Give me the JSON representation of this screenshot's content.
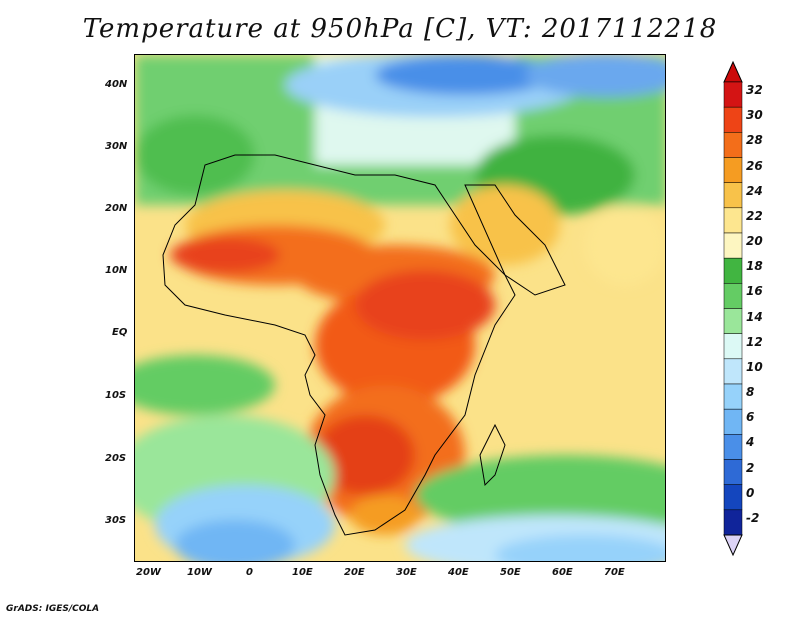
{
  "title": "Temperature at 950hPa [C], VT: 2017112218",
  "credit": "GrADS: IGES/COLA",
  "map": {
    "region": "Africa, Arabian Peninsula, Indian Ocean",
    "projection": "lat-lon",
    "lon_range": [
      -22,
      80
    ],
    "lat_range": [
      -37,
      46
    ],
    "lon_ticks": [
      "20W",
      "10W",
      "0",
      "10E",
      "20E",
      "30E",
      "40E",
      "50E",
      "60E",
      "70E"
    ],
    "lat_ticks": [
      "40N",
      "30N",
      "20N",
      "10N",
      "EQ",
      "10S",
      "20S",
      "30S"
    ]
  },
  "colorbar": {
    "labels": [
      "32",
      "30",
      "28",
      "26",
      "24",
      "22",
      "20",
      "18",
      "16",
      "14",
      "12",
      "10",
      "8",
      "6",
      "4",
      "2",
      "0",
      "-2"
    ],
    "colors": [
      "#d41414",
      "#ee4416",
      "#f36e1a",
      "#f59c22",
      "#f8c24a",
      "#fde68f",
      "#fdf6c1",
      "#41b541",
      "#64cc64",
      "#9ae69a",
      "#dcf9f5",
      "#bfe6fb",
      "#96d2fa",
      "#70b6f4",
      "#4a8fe8",
      "#2e6ad6",
      "#1446be",
      "#10249a"
    ]
  }
}
